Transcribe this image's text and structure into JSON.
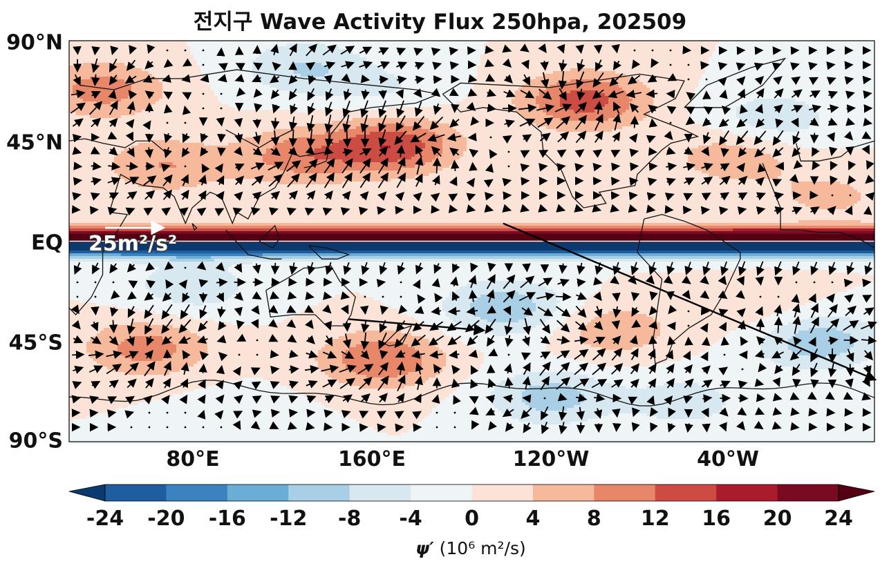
{
  "chart_data": {
    "type": "heatmap",
    "title": "전지구 Wave Activity Flux 250hpa, 202509",
    "overlay": "vector field (wave activity flux arrows) over filled contours with coastlines",
    "y_ticks": [
      "90°N",
      "45°N",
      "EQ",
      "45°S",
      "90°S"
    ],
    "x_ticks": [
      "80°E",
      "160°E",
      "120°W",
      "40°W"
    ],
    "x_tick_lon": [
      80,
      160,
      240,
      320
    ],
    "lon_range": [
      25,
      385
    ],
    "lat_range": [
      -90,
      90
    ],
    "reference_vector_label": "25m²/s²",
    "colorbar": {
      "levels": [
        -24,
        -20,
        -16,
        -12,
        -8,
        -4,
        0,
        4,
        8,
        12,
        16,
        20,
        24
      ],
      "tick_labels": [
        "-24",
        "-20",
        "-16",
        "-12",
        "-8",
        "-4",
        "0",
        "4",
        "8",
        "12",
        "16",
        "20",
        "24"
      ],
      "extend": "both",
      "colors": [
        "#0d3a6e",
        "#1f5da1",
        "#3b82c0",
        "#6aaed6",
        "#a8cfe5",
        "#d7e8f1",
        "#eff4f7",
        "#fbe4d7",
        "#f6b99c",
        "#e8866a",
        "#cc4c44",
        "#a81c2c",
        "#7a0a22",
        "#550012"
      ],
      "label_symbol": "ψ′",
      "label_unit": " (10⁶ m²/s)"
    },
    "anomalies": [
      {
        "lon": 40,
        "lat": 68,
        "value": 10
      },
      {
        "lon": 68,
        "lat": 34,
        "value": 8
      },
      {
        "lon": 128,
        "lat": 38,
        "value": 10
      },
      {
        "lon": 170,
        "lat": 43,
        "value": 15
      },
      {
        "lon": 255,
        "lat": 63,
        "value": 14
      },
      {
        "lon": 322,
        "lat": 38,
        "value": 7
      },
      {
        "lon": 365,
        "lat": 20,
        "value": 5
      },
      {
        "lon": 130,
        "lat": 78,
        "value": -8
      },
      {
        "lon": 340,
        "lat": 55,
        "value": -7
      },
      {
        "lon": 165,
        "lat": 68,
        "value": -4
      },
      {
        "lon": 60,
        "lat": -48,
        "value": 10
      },
      {
        "lon": 165,
        "lat": -53,
        "value": 12
      },
      {
        "lon": 220,
        "lat": -30,
        "value": -11
      },
      {
        "lon": 268,
        "lat": -40,
        "value": 7
      },
      {
        "lon": 335,
        "lat": -30,
        "value": 3
      },
      {
        "lon": 360,
        "lat": -45,
        "value": -11
      },
      {
        "lon": 240,
        "lat": -70,
        "value": -10
      },
      {
        "lon": 80,
        "lat": -20,
        "value": -7
      },
      {
        "lon": 300,
        "lat": -72,
        "value": -6
      },
      {
        "lon": 100,
        "lat": -80,
        "value": -3
      }
    ],
    "long_vectors": [
      {
        "lon": 219,
        "lat": 8,
        "dlon": 166,
        "dlat": -70
      },
      {
        "lon": 150,
        "lat": -35,
        "dlon": 60,
        "dlat": -5
      }
    ]
  }
}
